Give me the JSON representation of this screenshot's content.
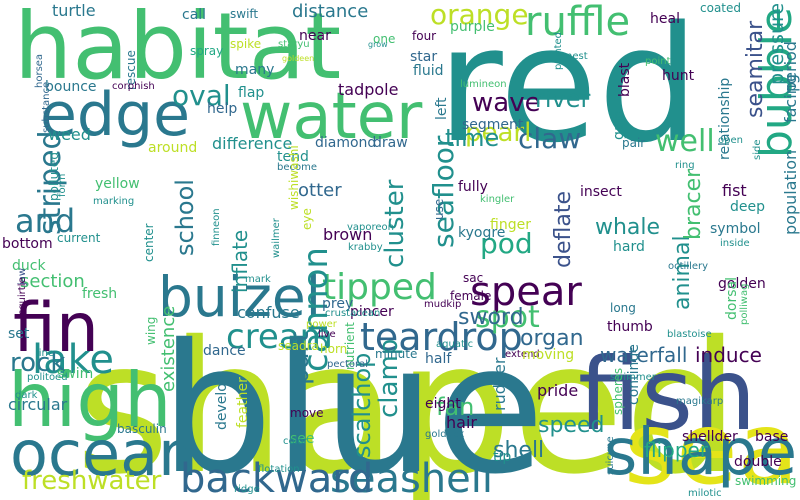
{
  "palette": {
    "background": "#ffffff",
    "dark_purple": "#440154",
    "indigo": "#3b528b",
    "slate_blue": "#31688e",
    "teal_blue": "#2a788e",
    "teal": "#21908d",
    "sea_green": "#22a884",
    "green": "#43bf71",
    "light_green": "#7ad151",
    "lime": "#bddf26",
    "yellow": "#e4e419"
  },
  "words": [
    "shaped",
    "blue",
    "red",
    "habitat",
    "fish",
    "water",
    "sea",
    "shape",
    "fin",
    "high",
    "ocean",
    "edge",
    "buizel",
    "seashell",
    "ruffle",
    "bubble",
    "teardrop",
    "backward",
    "lake",
    "spear",
    "freshwater",
    "tipped",
    "cannon",
    "cream",
    "spot",
    "and",
    "striped",
    "orange",
    "claw",
    "seafloor",
    "oval",
    "wave",
    "pearl",
    "river",
    "school",
    "well",
    "time",
    "part",
    "clamp",
    "scalchop",
    "rock",
    "cluster",
    "waterfall",
    "induce",
    "pressure",
    "seamitar",
    "pod",
    "sword",
    "organ",
    "whale",
    "deflate",
    "animal",
    "bracer",
    "flipper",
    "speed",
    "shell",
    "fan",
    "inflate",
    "existence",
    "population",
    "facing",
    "period",
    "relationship",
    "difference",
    "diamond",
    "draw",
    "otter",
    "section",
    "fist",
    "tadpole",
    "turtle",
    "distance",
    "call",
    "swift",
    "near",
    "spike",
    "spray",
    "many",
    "flap",
    "help",
    "weed",
    "yellow",
    "around",
    "tend",
    "become",
    "brown",
    "kyogre",
    "finger",
    "golden",
    "thumb",
    "pride",
    "rudder",
    "hair",
    "eight",
    "half",
    "minute",
    "pincer",
    "prey",
    "confuse",
    "dance",
    "feather",
    "develop",
    "see",
    "move",
    "circular",
    "basculin",
    "swim",
    "duck",
    "jaw",
    "fresh",
    "set",
    "wing",
    "center",
    "current",
    "bottom",
    "form",
    "polluted",
    "marking",
    "rescue",
    "horsea",
    "corphish",
    "bounce",
    "staryu",
    "goldeen",
    "four",
    "star",
    "one",
    "grow",
    "fluid",
    "lumineon",
    "segment",
    "pointed",
    "purple",
    "heal",
    "coated",
    "hunt",
    "blast",
    "gain",
    "left",
    "pair",
    "open",
    "ring",
    "side",
    "nest",
    "point",
    "insect",
    "fully",
    "deep",
    "symbol",
    "hard",
    "kingler",
    "octillery",
    "inside",
    "sac",
    "female",
    "long",
    "mudkip",
    "crustacean",
    "live",
    "aquatic",
    "extend",
    "nutrient",
    "moving",
    "swimmer",
    "dorsal",
    "polliwag",
    "blastoise",
    "continue",
    "spheres",
    "shellder",
    "base",
    "double",
    "swimming",
    "milotic",
    "suicune",
    "golduck",
    "magikarp",
    "tip",
    "color",
    "flotation",
    "ridge",
    "pectoral",
    "horn",
    "seadra",
    "line",
    "politoed",
    "dark",
    "squirtle",
    "finneon",
    "krabby",
    "vaporeon",
    "wailmer",
    "mark",
    "eye",
    "wishiwashi",
    "use",
    "power",
    "substance"
  ]
}
